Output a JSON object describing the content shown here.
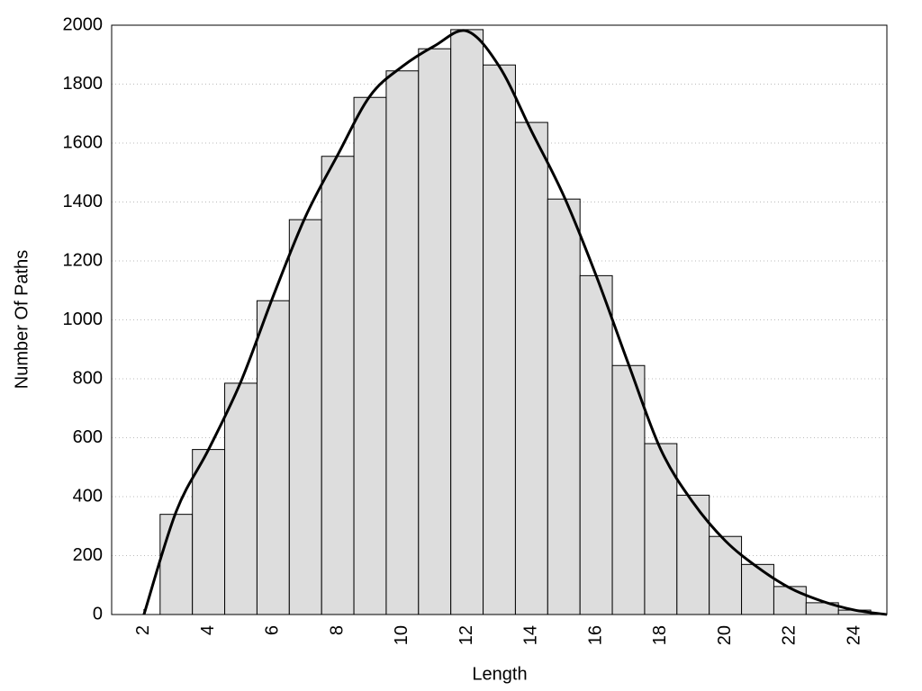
{
  "chart_data": {
    "type": "histogram",
    "xlabel": "Length",
    "ylabel": "Number Of Paths",
    "bins": [
      2.5,
      3.5,
      4.5,
      5.5,
      6.5,
      7.5,
      8.5,
      9.5,
      10.5,
      11.5,
      12.5,
      13.5,
      14.5,
      15.5,
      16.5,
      17.5,
      18.5,
      19.5,
      20.5,
      21.5,
      22.5,
      23.5,
      24.5
    ],
    "values": [
      340,
      560,
      785,
      1065,
      1340,
      1555,
      1755,
      1845,
      1920,
      1985,
      1865,
      1670,
      1410,
      1150,
      845,
      580,
      405,
      265,
      170,
      95,
      40,
      15
    ],
    "color": "#dddddd",
    "line": {
      "x": [
        2,
        3,
        4,
        5,
        6,
        7,
        8,
        9,
        10,
        11,
        12,
        13,
        14,
        15,
        16,
        17,
        18,
        19,
        20,
        21,
        22,
        23,
        24,
        25
      ],
      "values": [
        0,
        350,
        560,
        790,
        1080,
        1350,
        1560,
        1760,
        1860,
        1930,
        1980,
        1860,
        1640,
        1420,
        1150,
        850,
        560,
        380,
        250,
        160,
        90,
        45,
        15,
        0
      ],
      "color": "#000000"
    },
    "xlim": [
      1,
      25
    ],
    "xticks": [
      2,
      4,
      6,
      8,
      10,
      12,
      14,
      16,
      18,
      20,
      22,
      24
    ],
    "ylim": [
      0,
      2000
    ],
    "yticks": [
      0,
      200,
      400,
      600,
      800,
      1000,
      1200,
      1400,
      1600,
      1800,
      2000
    ],
    "grid": true
  }
}
